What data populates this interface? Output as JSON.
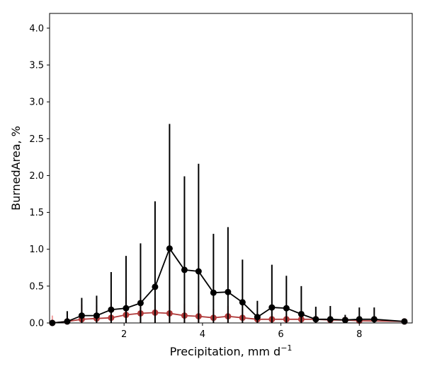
{
  "chart_data": {
    "type": "line",
    "title": "",
    "xlabel": "Precipitation,  mm d",
    "xlabel_sup": "−1",
    "ylabel": "BurnedArea,  %",
    "xlim": [
      0.1,
      9.35
    ],
    "ylim": [
      0,
      4.2
    ],
    "xticks": [
      2,
      4,
      6,
      8
    ],
    "xtick_labels": [
      "2",
      "4",
      "6",
      "8"
    ],
    "yticks": [
      0.0,
      0.5,
      1.0,
      1.5,
      2.0,
      2.5,
      3.0,
      3.5,
      4.0
    ],
    "ytick_labels": [
      "0.0",
      "0.5",
      "1.0",
      "1.5",
      "2.0",
      "2.5",
      "3.0",
      "3.5",
      "4.0"
    ],
    "grid": false,
    "series": [
      {
        "color": "#b03a3a",
        "errcolor": "#f0a0a0",
        "x": [
          0.17,
          0.55,
          0.92,
          1.3,
          1.67,
          2.05,
          2.42,
          2.79,
          3.16,
          3.54,
          3.9,
          4.28,
          4.65,
          5.02,
          5.4,
          5.77,
          6.14,
          6.52,
          6.89,
          7.26,
          7.64,
          8.0,
          9.15
        ],
        "y": [
          0.0,
          0.02,
          0.05,
          0.06,
          0.07,
          0.11,
          0.13,
          0.14,
          0.13,
          0.1,
          0.09,
          0.07,
          0.09,
          0.07,
          0.05,
          0.05,
          0.05,
          0.05,
          0.05,
          0.04,
          0.04,
          0.03,
          0.02
        ],
        "err": [
          0.1,
          0.05,
          0.2,
          0.18,
          0.2,
          0.25,
          0.22,
          0.2,
          0.18,
          0.16,
          0.15,
          0.12,
          0.14,
          0.12,
          0.08,
          0.08,
          0.07,
          0.07,
          0.06,
          0.05,
          0.05,
          0.04,
          0.03
        ]
      },
      {
        "color": "#000000",
        "errcolor": "#000000",
        "x": [
          0.17,
          0.55,
          0.92,
          1.3,
          1.67,
          2.05,
          2.42,
          2.79,
          3.16,
          3.54,
          3.9,
          4.28,
          4.65,
          5.02,
          5.4,
          5.77,
          6.14,
          6.52,
          6.89,
          7.26,
          7.64,
          8.0,
          8.38,
          9.15
        ],
        "y": [
          0.0,
          0.02,
          0.1,
          0.1,
          0.18,
          0.2,
          0.27,
          0.49,
          1.01,
          0.72,
          0.7,
          0.41,
          0.42,
          0.28,
          0.08,
          0.21,
          0.2,
          0.12,
          0.05,
          0.05,
          0.04,
          0.05,
          0.05,
          0.02
        ],
        "err": [
          0.0,
          0.14,
          0.24,
          0.27,
          0.51,
          0.71,
          0.81,
          1.16,
          1.69,
          1.27,
          1.46,
          0.8,
          0.88,
          0.58,
          0.22,
          0.58,
          0.44,
          0.38,
          0.17,
          0.18,
          0.07,
          0.16,
          0.16,
          0.02
        ]
      }
    ]
  }
}
